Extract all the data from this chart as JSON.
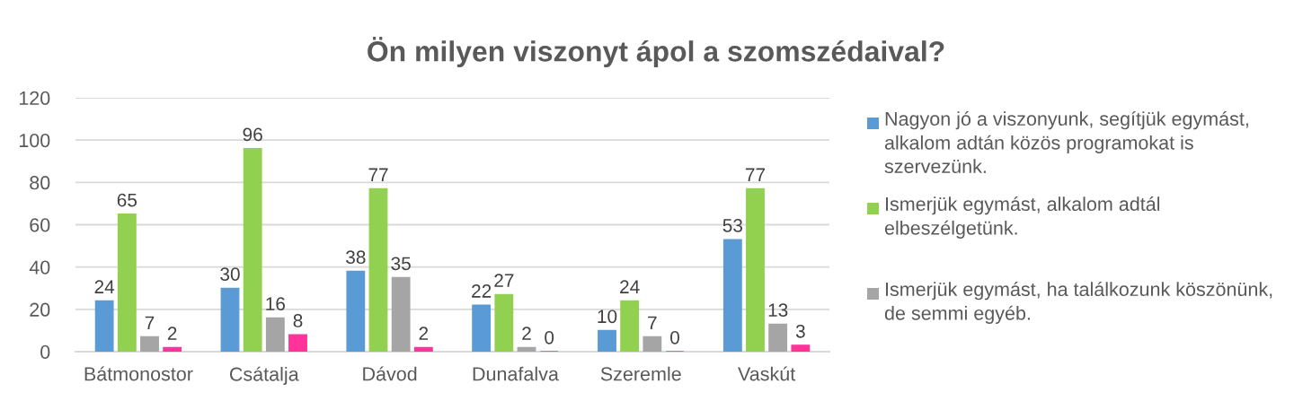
{
  "chart_data": {
    "type": "bar",
    "title": "Ön milyen viszonyt ápol a szomszédaival?",
    "categories": [
      "Bátmonostor",
      "Csátalja",
      "Dávod",
      "Dunafalva",
      "Szeremle",
      "Vaskút"
    ],
    "series": [
      {
        "name": "Nagyon jó a viszonyunk, segítjük egymást, alkalom adtán közös programokat is szervezünk.",
        "color": "#5b9bd5",
        "values": [
          24,
          30,
          38,
          22,
          10,
          53
        ]
      },
      {
        "name": "Ismerjük egymást, alkalom adtál elbeszélgetünk.",
        "color": "#92d050",
        "values": [
          65,
          96,
          77,
          27,
          24,
          77
        ]
      },
      {
        "name": "Ismerjük egymást, ha találkozunk köszönünk, de semmi egyéb.",
        "color": "#a5a5a5",
        "values": [
          7,
          16,
          35,
          2,
          7,
          13
        ]
      },
      {
        "color": "#ff3399",
        "values": [
          2,
          8,
          2,
          0,
          0,
          3
        ]
      }
    ],
    "ylim": [
      0,
      120
    ],
    "yticks": [
      0,
      20,
      40,
      60,
      80,
      100,
      120
    ],
    "grid": "y",
    "legend": "right",
    "data_labels": true
  }
}
